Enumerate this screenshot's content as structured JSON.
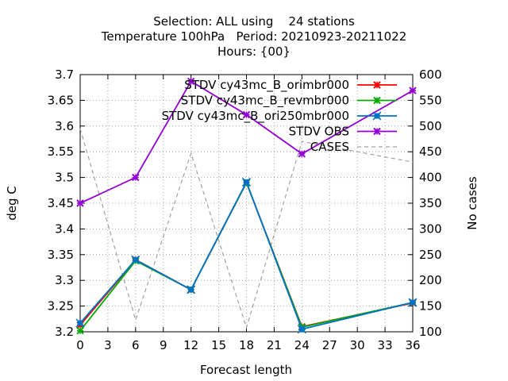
{
  "chart_data": {
    "type": "line",
    "title": [
      "Selection: ALL using    24 stations",
      "Temperature 100hPa   Period: 20210923-20211022",
      "Hours: {00}"
    ],
    "xlabel": "Forecast length",
    "ylabel": "deg C",
    "y2label": "No cases",
    "xlim": [
      0,
      36
    ],
    "ylim": [
      3.2,
      3.7
    ],
    "y2lim": [
      100,
      600
    ],
    "xticks": [
      0,
      3,
      6,
      9,
      12,
      15,
      18,
      21,
      24,
      27,
      30,
      33,
      36
    ],
    "yticks": [
      3.2,
      3.25,
      3.3,
      3.35,
      3.4,
      3.45,
      3.5,
      3.55,
      3.6,
      3.65,
      3.7
    ],
    "y2ticks": [
      100,
      150,
      200,
      250,
      300,
      350,
      400,
      450,
      500,
      550,
      600
    ],
    "ytick_labels": [
      "3.2",
      "3.25",
      "3.3",
      "3.35",
      "3.4",
      "3.45",
      "3.5",
      "3.55",
      "3.6",
      "3.65",
      "3.7"
    ],
    "grid": true,
    "legend_position": "top-right",
    "x": [
      0,
      6,
      12,
      18,
      24,
      36
    ],
    "series": [
      {
        "name": "STDV cy43mc_B_orimbr000",
        "color": "#ff0000",
        "marker": "x",
        "axis": "y",
        "values": [
          3.213,
          3.34,
          3.282,
          3.49,
          3.21,
          3.256
        ]
      },
      {
        "name": "STDV cy43mc_B_revmbr000",
        "color": "#00aa00",
        "marker": "x",
        "axis": "y",
        "values": [
          3.202,
          3.338,
          3.282,
          3.49,
          3.209,
          3.257
        ]
      },
      {
        "name": "STDV cy43mc_B_ori250mbr000",
        "color": "#0072c6",
        "marker": "box",
        "axis": "y",
        "values": [
          3.217,
          3.34,
          3.282,
          3.491,
          3.205,
          3.257
        ]
      },
      {
        "name": "STDV OBS",
        "color": "#9400d3",
        "marker": "x",
        "axis": "y",
        "values": [
          3.45,
          3.5,
          3.687,
          3.622,
          3.546,
          3.669
        ]
      },
      {
        "name": "CASES",
        "color": "#a0a0a0",
        "marker": "none",
        "dashed": true,
        "axis": "y2",
        "values": [
          495,
          123,
          447,
          108,
          470,
          430
        ]
      }
    ]
  }
}
